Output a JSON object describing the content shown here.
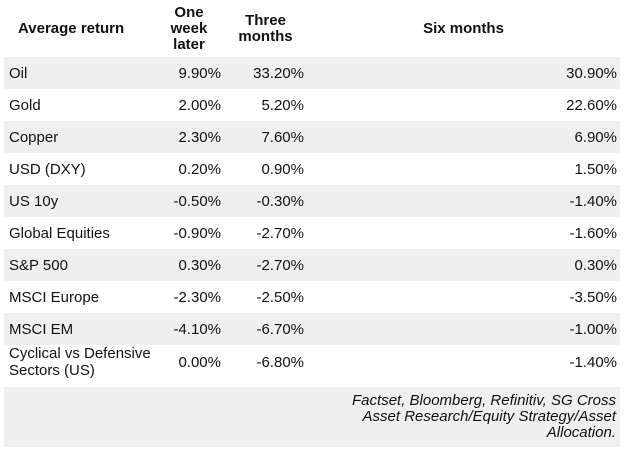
{
  "table": {
    "columns": [
      {
        "label": "Average return"
      },
      {
        "label": "One week later"
      },
      {
        "label": "Three months"
      },
      {
        "label": "Six months"
      }
    ],
    "rows": [
      {
        "label": "Oil",
        "one_week": "9.90%",
        "three_months": "33.20%",
        "six_months": "30.90%"
      },
      {
        "label": "Gold",
        "one_week": "2.00%",
        "three_months": "5.20%",
        "six_months": "22.60%"
      },
      {
        "label": "Copper",
        "one_week": "2.30%",
        "three_months": "7.60%",
        "six_months": "6.90%"
      },
      {
        "label": "USD (DXY)",
        "one_week": "0.20%",
        "three_months": "0.90%",
        "six_months": "1.50%"
      },
      {
        "label": "US 10y",
        "one_week": "-0.50%",
        "three_months": "-0.30%",
        "six_months": "-1.40%"
      },
      {
        "label": "Global Equities",
        "one_week": "-0.90%",
        "three_months": "-2.70%",
        "six_months": "-1.60%"
      },
      {
        "label": "S&P 500",
        "one_week": "0.30%",
        "three_months": "-2.70%",
        "six_months": "0.30%"
      },
      {
        "label": "MSCI Europe",
        "one_week": "-2.30%",
        "three_months": "-2.50%",
        "six_months": "-3.50%"
      },
      {
        "label": "MSCI EM",
        "one_week": "-4.10%",
        "three_months": "-6.70%",
        "six_months": "-1.00%"
      },
      {
        "label": "Cyclical vs Defensive Sectors (US)",
        "one_week": "0.00%",
        "three_months": "-6.80%",
        "six_months": "-1.40%"
      }
    ]
  },
  "footer": {
    "source": "Factset, Bloomberg, Refinitiv, SG Cross Asset Research/Equity Strategy/Asset Allocation."
  },
  "colors": {
    "row_stripe": "#efefef",
    "text": "#111111",
    "background": "#ffffff"
  },
  "chart_data": {
    "type": "table",
    "title": "Average return",
    "columns": [
      "Average return",
      "One week later",
      "Three months",
      "Six months"
    ],
    "unit": "%",
    "rows": [
      {
        "asset": "Oil",
        "one_week_later": 9.9,
        "three_months": 33.2,
        "six_months": 30.9
      },
      {
        "asset": "Gold",
        "one_week_later": 2.0,
        "three_months": 5.2,
        "six_months": 22.6
      },
      {
        "asset": "Copper",
        "one_week_later": 2.3,
        "three_months": 7.6,
        "six_months": 6.9
      },
      {
        "asset": "USD (DXY)",
        "one_week_later": 0.2,
        "three_months": 0.9,
        "six_months": 1.5
      },
      {
        "asset": "US 10y",
        "one_week_later": -0.5,
        "three_months": -0.3,
        "six_months": -1.4
      },
      {
        "asset": "Global Equities",
        "one_week_later": -0.9,
        "three_months": -2.7,
        "six_months": -1.6
      },
      {
        "asset": "S&P 500",
        "one_week_later": 0.3,
        "three_months": -2.7,
        "six_months": 0.3
      },
      {
        "asset": "MSCI Europe",
        "one_week_later": -2.3,
        "three_months": -2.5,
        "six_months": -3.5
      },
      {
        "asset": "MSCI EM",
        "one_week_later": -4.1,
        "three_months": -6.7,
        "six_months": -1.0
      },
      {
        "asset": "Cyclical vs Defensive Sectors (US)",
        "one_week_later": 0.0,
        "three_months": -6.8,
        "six_months": -1.4
      }
    ],
    "source": "Factset, Bloomberg, Refinitiv, SG Cross Asset Research/Equity Strategy/Asset Allocation."
  }
}
